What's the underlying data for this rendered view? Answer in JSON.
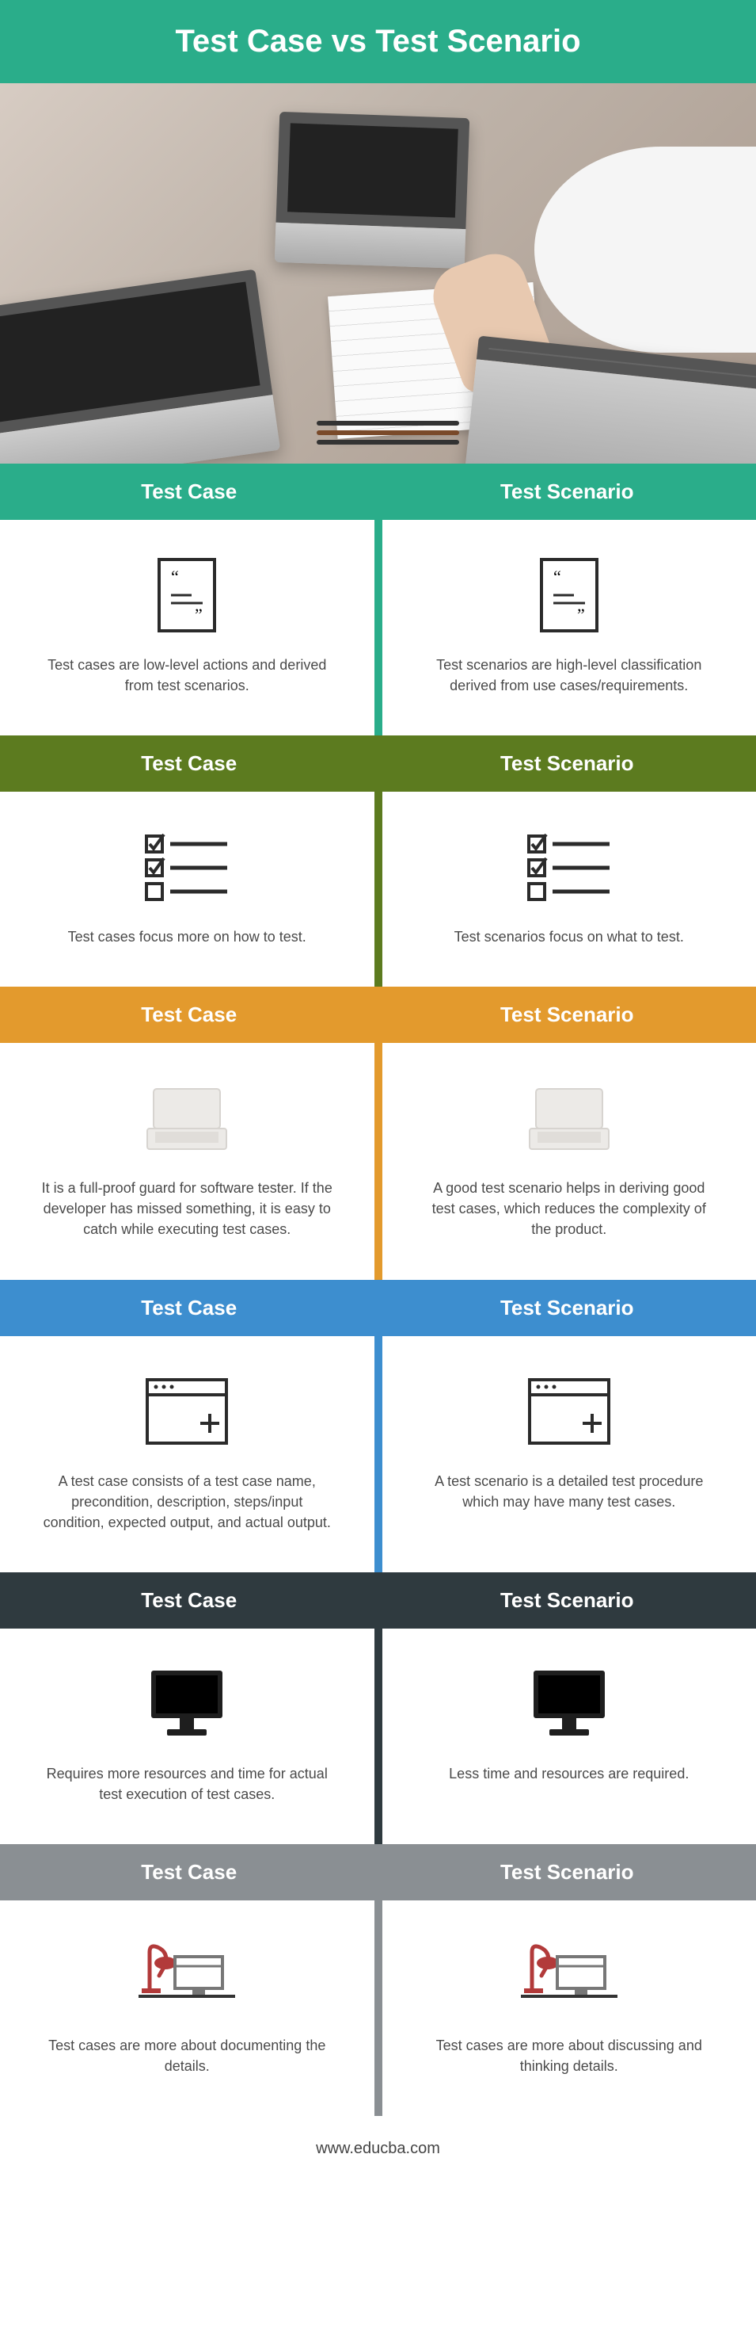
{
  "title": "Test Case vs Test Scenario",
  "title_bg": "#2aa d8a",
  "title_background": "#2aad8a",
  "left_label": "Test Case",
  "right_label": "Test Scenario",
  "footer": "www.educba.com",
  "sections": [
    {
      "color": "#2aad8a",
      "icon": "document",
      "left": "Test cases are low-level actions and derived from test scenarios.",
      "right": "Test scenarios are high-level classification derived from use cases/requirements."
    },
    {
      "color": "#5c7b1f",
      "icon": "checklist",
      "left": "Test cases focus more on how to test.",
      "right": "Test scenarios focus on what to test."
    },
    {
      "color": "#e39a2d",
      "icon": "laptop",
      "left": "It is a full-proof guard for software tester. If the developer has missed something, it is easy to catch while executing test cases.",
      "right": "A good test scenario helps in deriving good test cases, which reduces the complexity of the product."
    },
    {
      "color": "#3d8ecf",
      "icon": "window",
      "left": "A test case consists of a test case name, precondition, description, steps/input condition, expected output, and actual output.",
      "right": "A test scenario is a detailed test procedure which may have many test cases."
    },
    {
      "color": "#2f3a3f",
      "icon": "monitor",
      "left": "Requires more resources and time for actual test execution of test cases.",
      "right": "Less time and resources are required."
    },
    {
      "color": "#8a8f93",
      "icon": "desk",
      "left": "Test cases are more about documenting the details.",
      "right": "Test cases are more about discussing and thinking details."
    }
  ]
}
